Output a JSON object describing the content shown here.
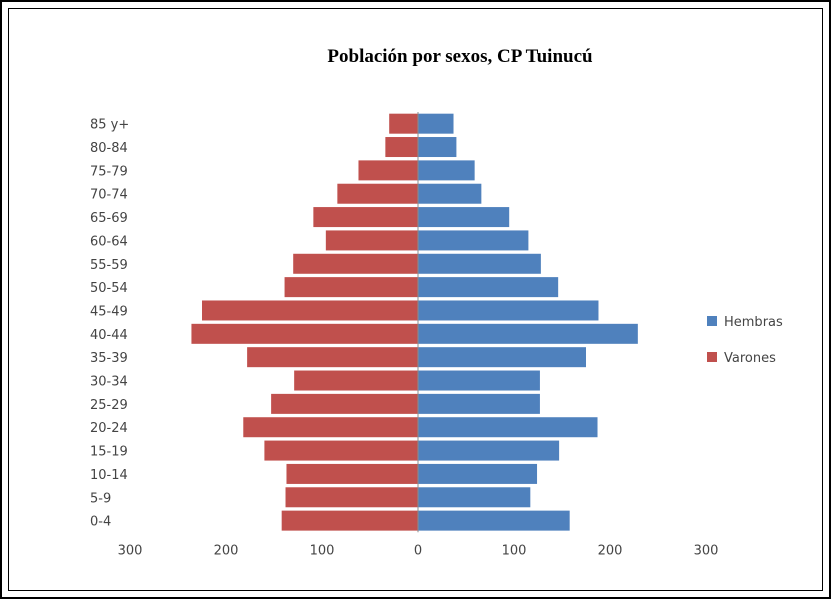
{
  "chart_data": {
    "type": "bar",
    "orientation": "horizontal",
    "title": "Población por sexos, CP Tuinucú",
    "xlabel": "",
    "ylabel": "",
    "xlim": [
      -300,
      300
    ],
    "x_ticks": [
      "300",
      "200",
      "100",
      "0",
      "100",
      "200",
      "300"
    ],
    "grid": false,
    "legend_position": "right",
    "categories": [
      "0-4",
      "5-9",
      "10-14",
      "15-19",
      "20-24",
      "25-29",
      "30-34",
      "35-39",
      "40-44",
      "45-49",
      "50-54",
      "55-59",
      "60-64",
      "65-69",
      "70-74",
      "75-79",
      "80-84",
      "85 y+"
    ],
    "series": [
      {
        "name": "Hembras",
        "color": "#4f81bd",
        "values": [
          158,
          117,
          124,
          147,
          187,
          127,
          127,
          175,
          229,
          188,
          146,
          128,
          115,
          95,
          66,
          59,
          40,
          37
        ]
      },
      {
        "name": "Varones",
        "color": "#c0504d",
        "values": [
          -142,
          -138,
          -137,
          -160,
          -182,
          -153,
          -129,
          -178,
          -236,
          -225,
          -139,
          -130,
          -96,
          -109,
          -84,
          -62,
          -34,
          -30
        ]
      }
    ]
  }
}
